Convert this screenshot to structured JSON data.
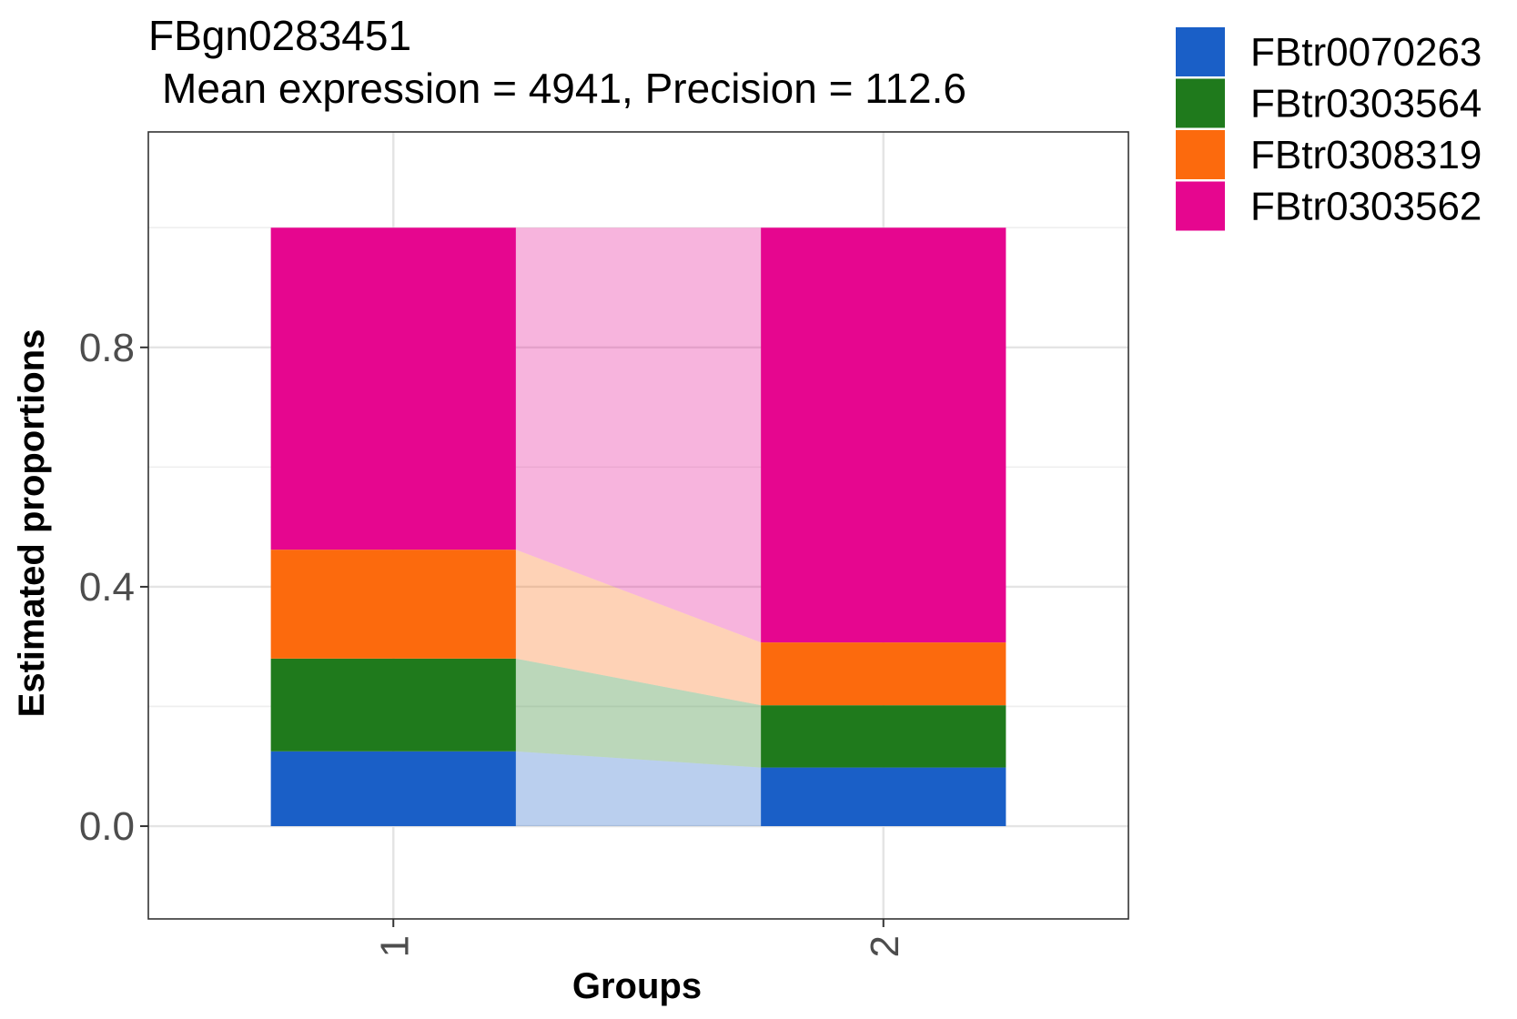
{
  "chart_data": {
    "type": "bar",
    "stacked": true,
    "title": "FBgn0283451",
    "subtitle": "Mean expression = 4941, Precision = 112.6",
    "xlabel": "Groups",
    "ylabel": "Estimated proportions",
    "categories": [
      "1",
      "2"
    ],
    "ylim": [
      -0.155,
      1.16
    ],
    "yticks": [
      0.0,
      0.4,
      0.8
    ],
    "ytick_labels": [
      "0.0",
      "0.4",
      "0.8"
    ],
    "grid": true,
    "legend_position": "top-right",
    "series": [
      {
        "name": "FBtr0070263",
        "color": "#1A5FC7",
        "values": [
          0.125,
          0.098
        ]
      },
      {
        "name": "FBtr0303564",
        "color": "#1F7A1C",
        "values": [
          0.155,
          0.104
        ]
      },
      {
        "name": "FBtr0308319",
        "color": "#FC6A0D",
        "values": [
          0.182,
          0.105
        ]
      },
      {
        "name": "FBtr0303562",
        "color": "#E6068F",
        "values": [
          0.538,
          0.693
        ]
      }
    ]
  }
}
